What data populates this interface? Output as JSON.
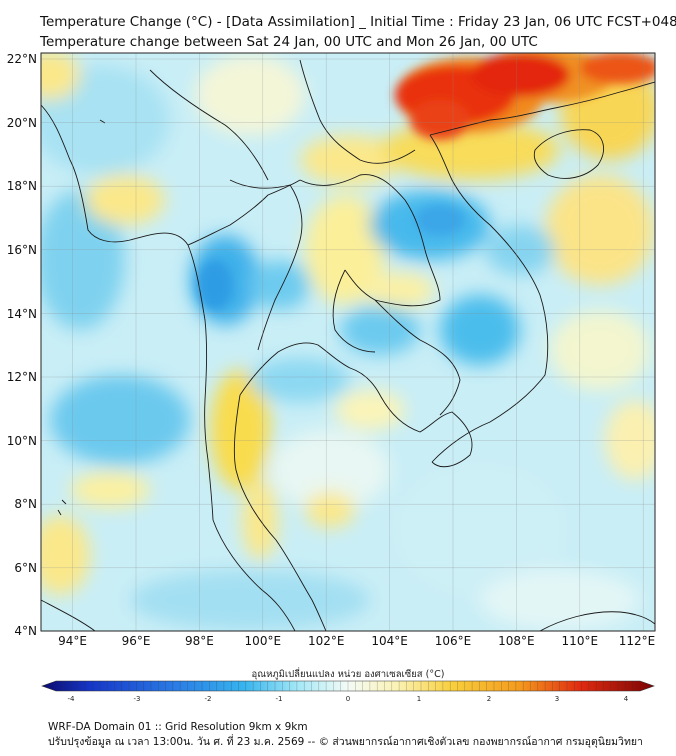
{
  "title": {
    "line1": "Temperature Change (°C) - [Data Assimilation] _ Initial Time : Friday 23 Jan, 06 UTC FCST+048",
    "line2": "Temperature change between Sat 24 Jan, 00 UTC and Mon 26 Jan, 00 UTC"
  },
  "map": {
    "lat_labels": [
      "22°N",
      "20°N",
      "18°N",
      "16°N",
      "14°N",
      "12°N",
      "10°N",
      "8°N",
      "6°N",
      "4°N"
    ],
    "lon_labels": [
      "94°E",
      "96°E",
      "98°E",
      "100°E",
      "102°E",
      "104°E",
      "106°E",
      "108°E",
      "110°E",
      "112°E"
    ],
    "lat_range": [
      4,
      22
    ],
    "lon_range": [
      93,
      112.4
    ],
    "grid": true
  },
  "colorbar": {
    "label": "อุณหภูมิเปลี่ยนแปลง หน่วย องศาเซลเซียส (°C)",
    "ticks": [
      "-4",
      "-3",
      "-2",
      "-1",
      "0",
      "1",
      "2",
      "3",
      "4"
    ],
    "range": [
      -4,
      4
    ],
    "colors": [
      "#0b0b6e",
      "#1636c8",
      "#2a7de6",
      "#36b4ee",
      "#5fd2f2",
      "#a6e9f7",
      "#e6f8fb",
      "#fbf8d4",
      "#fbe88a",
      "#f8cf3c",
      "#f49a1e",
      "#ef5a14",
      "#d4120e",
      "#8a0606"
    ]
  },
  "footer": {
    "line1": "WRF-DA Domain 01 :: Grid Resolution 9km x 9km",
    "line2": "ปรับปรุงข้อมูล ณ เวลา 13:00น. วัน ศ. ที่ 23 ม.ค. 2569 -- © ส่วนพยากรณ์อากาศเชิงตัวเลข กองพยากรณ์อากาศ กรมอุตุนิยมวิทยา"
  }
}
